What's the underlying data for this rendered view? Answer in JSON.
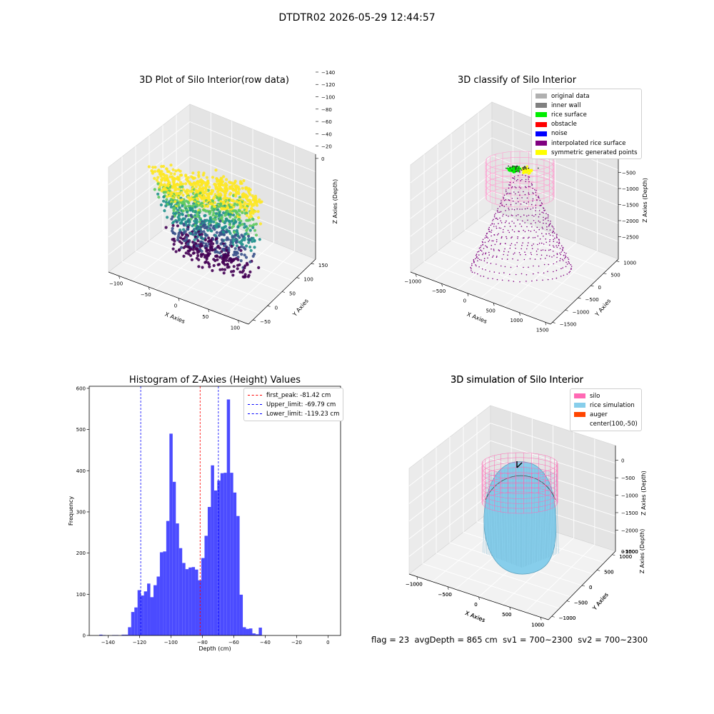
{
  "suptitle": "DTDTR02 2026-05-29 12:44:57",
  "status": {
    "flag": "flag = 23",
    "avg_depth": "avgDepth = 865 cm",
    "sv1": "sv1 = 700~2300",
    "sv2": "sv2 = 700~2300"
  },
  "chart_data": [
    {
      "type": "scatter3d",
      "title": "3D Plot of Silo Interior(row data)",
      "xlabel": "X Axies",
      "ylabel": "Y Axies",
      "zlabel": "Z Axies (Depth)",
      "xticks": [
        "−100",
        "−50",
        "0",
        "50",
        "100"
      ],
      "yticks": [
        "−50",
        "0",
        "50",
        "100",
        "150"
      ],
      "zticks": [
        "0",
        "−20",
        "−40",
        "−60",
        "−80",
        "−100",
        "−120",
        "−140"
      ],
      "xlim": [
        -120,
        110
      ],
      "ylim": [
        -60,
        180
      ],
      "zlim": [
        -150,
        5
      ],
      "colormap": [
        "#440154",
        "#3b528b",
        "#21918c",
        "#5ec962",
        "#fde725"
      ],
      "grid": true
    },
    {
      "type": "scatter3d",
      "title": "3D classify of Silo Interior",
      "xlabel": "X Axies",
      "ylabel": "Y Axies",
      "zlabel": "Z Axies (Depth)",
      "xticks": [
        "−1000",
        "−500",
        "0",
        "500",
        "1000",
        "1500"
      ],
      "yticks": [
        "−1500",
        "−1000",
        "−500",
        "0",
        "500",
        "1000"
      ],
      "zticks": [
        "−500",
        "−1000",
        "−1500",
        "−2000",
        "−2500"
      ],
      "zticks_partial": [
        "0"
      ],
      "legend_position": "upper-right",
      "legend": [
        {
          "label": "original data",
          "color": "#b0b0b0"
        },
        {
          "label": "inner wall",
          "color": "#808080"
        },
        {
          "label": "rice surface",
          "color": "#00ee00"
        },
        {
          "label": "obstacle",
          "color": "#ff0000"
        },
        {
          "label": "noise",
          "color": "#0000ff"
        },
        {
          "label": "interpolated rice surface",
          "color": "#800080"
        },
        {
          "label": "symmetric generated points",
          "color": "#ffff00"
        }
      ],
      "grid": true
    },
    {
      "type": "bar",
      "subtype": "histogram",
      "title": "Histogram of Z-Axies (Height) Values",
      "xlabel": "Depth (cm)",
      "ylabel": "Frequency",
      "xlim": [
        -152,
        8
      ],
      "ylim": [
        0,
        605
      ],
      "xticks": [
        -140,
        -120,
        -100,
        -80,
        -60,
        -40,
        -20,
        0
      ],
      "yticks": [
        0,
        100,
        200,
        300,
        400,
        500,
        600
      ],
      "bar_color": "#4b4bff",
      "bin_width": 2.03,
      "bin_start": -145.6,
      "values": [
        2,
        1,
        0,
        0,
        1,
        1,
        0,
        2,
        2,
        20,
        57,
        68,
        110,
        97,
        107,
        126,
        93,
        122,
        143,
        202,
        204,
        278,
        490,
        373,
        272,
        212,
        176,
        161,
        165,
        166,
        160,
        134,
        188,
        242,
        312,
        413,
        352,
        376,
        394,
        395,
        573,
        395,
        347,
        290,
        99,
        20,
        16,
        17,
        5,
        3,
        19
      ],
      "lines": [
        {
          "name": "first_peak: -81.42 cm",
          "x": -81.42,
          "color": "#ff0000"
        },
        {
          "name": "Upper_limit: -69.79 cm",
          "x": -69.79,
          "color": "#0000ff"
        },
        {
          "name": "Lower_limit: -119.23 cm",
          "x": -119.23,
          "color": "#0000ff"
        }
      ],
      "legend_position": "upper-right"
    },
    {
      "type": "surface3d",
      "title": "3D simulation of Silo Interior",
      "xlabel": "X Axies",
      "ylabel": "Y Axies",
      "zlabel": "Z Axies (Depth)",
      "xticks": [
        "−1000",
        "−500",
        "0",
        "500",
        "1000"
      ],
      "yticks": [
        "−1000",
        "−500",
        "0",
        "500",
        "1000"
      ],
      "zticks": [
        "0",
        "−500",
        "−1000",
        "−1500",
        "−2000"
      ],
      "legend_position": "upper-right",
      "legend": [
        {
          "label": "silo",
          "color": "#ff69b4"
        },
        {
          "label": "rice simulation",
          "color": "#87ceeb"
        },
        {
          "label": "auger",
          "color": "#ff4500"
        },
        {
          "label": "center(100,-50)",
          "color": null
        }
      ],
      "grid": true
    }
  ]
}
